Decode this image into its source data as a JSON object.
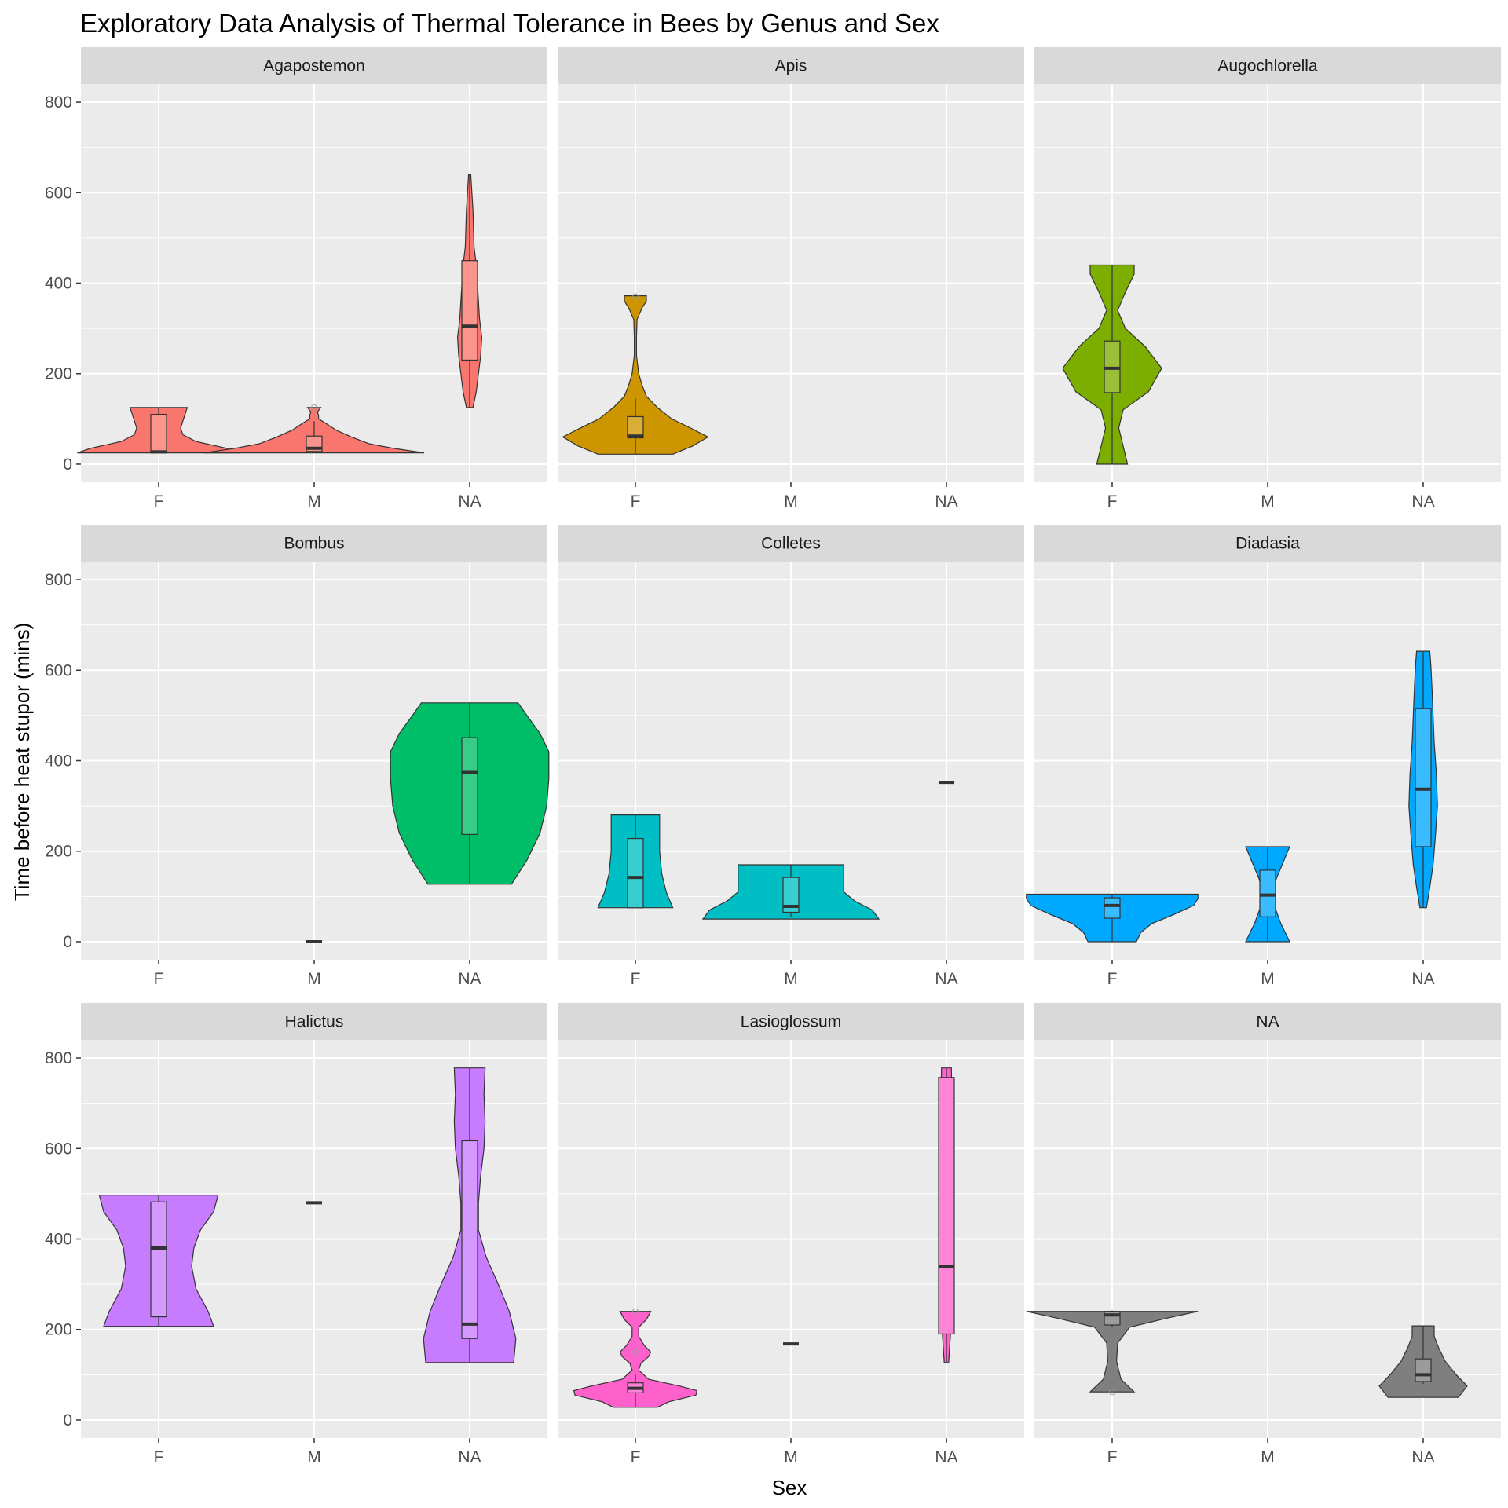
{
  "chart_data": {
    "type": "violin",
    "title": "Exploratory Data Analysis of Thermal Tolerance in Bees by Genus and Sex",
    "xlabel": "Sex",
    "ylabel": "Time before heat stupor (mins)",
    "categories": [
      "F",
      "M",
      "NA"
    ],
    "ylim": [
      -40,
      840
    ],
    "yticks": [
      0,
      200,
      400,
      600,
      800
    ],
    "grid": true,
    "legend": "none",
    "facet_layout": {
      "rows": 3,
      "cols": 3
    },
    "facets": [
      {
        "label": "Agapostemon",
        "color": "#F8766D",
        "groups": [
          {
            "x": "F",
            "box": [
              25,
              25,
              27,
              110,
              125
            ],
            "outliers": [],
            "violin": [
              [
                25,
                0.74
              ],
              [
                35,
                0.62
              ],
              [
                50,
                0.34
              ],
              [
                65,
                0.22
              ],
              [
                80,
                0.2
              ],
              [
                95,
                0.22
              ],
              [
                110,
                0.24
              ],
              [
                125,
                0.26
              ]
            ]
          },
          {
            "x": "M",
            "box": [
              25,
              28,
              35,
              62,
              95
            ],
            "outliers": [
              125
            ],
            "violin": [
              [
                25,
                1.0
              ],
              [
                35,
                0.72
              ],
              [
                45,
                0.5
              ],
              [
                60,
                0.34
              ],
              [
                75,
                0.2
              ],
              [
                88,
                0.12
              ],
              [
                100,
                0.04
              ],
              [
                108,
                0.04
              ],
              [
                115,
                0.03
              ],
              [
                125,
                0.06
              ]
            ]
          },
          {
            "x": "NA",
            "box": [
              125,
              230,
              305,
              450,
              640
            ],
            "outliers": [],
            "violin": [
              [
                125,
                0.03
              ],
              [
                160,
                0.06
              ],
              [
                200,
                0.08
              ],
              [
                240,
                0.1
              ],
              [
                280,
                0.11
              ],
              [
                320,
                0.09
              ],
              [
                360,
                0.08
              ],
              [
                400,
                0.07
              ],
              [
                440,
                0.06
              ],
              [
                480,
                0.04
              ],
              [
                520,
                0.035
              ],
              [
                560,
                0.03
              ],
              [
                600,
                0.02
              ],
              [
                640,
                0.01
              ]
            ]
          }
        ]
      },
      {
        "label": "Apis",
        "color": "#CD9600",
        "groups": [
          {
            "x": "F",
            "box": [
              22,
              58,
              62,
              105,
              145
            ],
            "outliers": [
              370
            ],
            "violin": [
              [
                22,
                0.34
              ],
              [
                40,
                0.52
              ],
              [
                60,
                0.66
              ],
              [
                80,
                0.5
              ],
              [
                100,
                0.33
              ],
              [
                125,
                0.2
              ],
              [
                150,
                0.1
              ],
              [
                175,
                0.06
              ],
              [
                200,
                0.03
              ],
              [
                240,
                0.01
              ],
              [
                280,
                0.01
              ],
              [
                320,
                0.015
              ],
              [
                345,
                0.06
              ],
              [
                360,
                0.1
              ],
              [
                372,
                0.1
              ]
            ]
          }
        ]
      },
      {
        "label": "Augochlorella",
        "color": "#7CAE00",
        "groups": [
          {
            "x": "F",
            "box": [
              0,
              158,
              212,
              272,
              440
            ],
            "outliers": [],
            "violin": [
              [
                0,
                0.14
              ],
              [
                40,
                0.1
              ],
              [
                80,
                0.06
              ],
              [
                120,
                0.1
              ],
              [
                160,
                0.33
              ],
              [
                212,
                0.45
              ],
              [
                260,
                0.3
              ],
              [
                300,
                0.12
              ],
              [
                340,
                0.05
              ],
              [
                380,
                0.12
              ],
              [
                420,
                0.2
              ],
              [
                440,
                0.2
              ]
            ]
          }
        ]
      },
      {
        "label": "Bombus",
        "color": "#00BE67",
        "groups": [
          {
            "x": "M",
            "box": [
              0,
              0,
              0,
              0,
              0
            ],
            "outliers": [],
            "violin": []
          },
          {
            "x": "NA",
            "box": [
              127,
              237,
              374,
              451,
              528
            ],
            "outliers": [],
            "violin": [
              [
                127,
                0.38
              ],
              [
                180,
                0.52
              ],
              [
                240,
                0.64
              ],
              [
                300,
                0.7
              ],
              [
                360,
                0.72
              ],
              [
                420,
                0.72
              ],
              [
                460,
                0.64
              ],
              [
                500,
                0.52
              ],
              [
                528,
                0.44
              ]
            ]
          }
        ]
      },
      {
        "label": "Colletes",
        "color": "#00BFC4",
        "groups": [
          {
            "x": "F",
            "box": [
              75,
              75,
              142,
              228,
              280
            ],
            "outliers": [],
            "violin": [
              [
                75,
                0.34
              ],
              [
                110,
                0.28
              ],
              [
                150,
                0.24
              ],
              [
                200,
                0.22
              ],
              [
                240,
                0.22
              ],
              [
                280,
                0.22
              ]
            ]
          },
          {
            "x": "M",
            "box": [
              55,
              65,
              78,
              142,
              170
            ],
            "outliers": [],
            "violin": [
              [
                50,
                0.8
              ],
              [
                70,
                0.74
              ],
              [
                90,
                0.58
              ],
              [
                110,
                0.48
              ],
              [
                130,
                0.48
              ],
              [
                150,
                0.48
              ],
              [
                170,
                0.48
              ]
            ]
          },
          {
            "x": "NA",
            "box": [
              352,
              352,
              352,
              352,
              352
            ],
            "outliers": [],
            "violin": []
          }
        ]
      },
      {
        "label": "Diadasia",
        "color": "#00A9FF",
        "groups": [
          {
            "x": "F",
            "box": [
              0,
              52,
              80,
              97,
              105
            ],
            "outliers": [],
            "violin": [
              [
                0,
                0.22
              ],
              [
                20,
                0.26
              ],
              [
                40,
                0.36
              ],
              [
                60,
                0.56
              ],
              [
                80,
                0.74
              ],
              [
                95,
                0.78
              ],
              [
                105,
                0.78
              ]
            ]
          },
          {
            "x": "M",
            "box": [
              0,
              55,
              103,
              158,
              210
            ],
            "outliers": [],
            "violin": [
              [
                0,
                0.2
              ],
              [
                40,
                0.12
              ],
              [
                80,
                0.06
              ],
              [
                105,
                0.04
              ],
              [
                140,
                0.08
              ],
              [
                175,
                0.14
              ],
              [
                210,
                0.2
              ]
            ]
          },
          {
            "x": "NA",
            "box": [
              75,
              210,
              337,
              515,
              642
            ],
            "outliers": [],
            "violin": [
              [
                75,
                0.03
              ],
              [
                120,
                0.06
              ],
              [
                170,
                0.09
              ],
              [
                230,
                0.11
              ],
              [
                300,
                0.13
              ],
              [
                370,
                0.12
              ],
              [
                440,
                0.1
              ],
              [
                500,
                0.09
              ],
              [
                560,
                0.08
              ],
              [
                610,
                0.07
              ],
              [
                642,
                0.06
              ]
            ]
          }
        ]
      },
      {
        "label": "Halictus",
        "color": "#C77CFF",
        "groups": [
          {
            "x": "F",
            "box": [
              207,
              228,
              380,
              482,
              497
            ],
            "outliers": [],
            "violin": [
              [
                207,
                0.5
              ],
              [
                240,
                0.45
              ],
              [
                290,
                0.34
              ],
              [
                340,
                0.3
              ],
              [
                380,
                0.32
              ],
              [
                420,
                0.38
              ],
              [
                460,
                0.5
              ],
              [
                497,
                0.54
              ]
            ]
          },
          {
            "x": "M",
            "box": [
              480,
              480,
              480,
              480,
              480
            ],
            "outliers": [],
            "violin": []
          },
          {
            "x": "NA",
            "box": [
              127,
              180,
              212,
              617,
              778
            ],
            "outliers": [],
            "violin": [
              [
                127,
                0.4
              ],
              [
                180,
                0.42
              ],
              [
                240,
                0.36
              ],
              [
                300,
                0.26
              ],
              [
                360,
                0.15
              ],
              [
                420,
                0.08
              ],
              [
                480,
                0.08
              ],
              [
                540,
                0.1
              ],
              [
                600,
                0.13
              ],
              [
                660,
                0.14
              ],
              [
                720,
                0.13
              ],
              [
                778,
                0.14
              ]
            ]
          }
        ]
      },
      {
        "label": "Lasioglossum",
        "color": "#FF61CC",
        "groups": [
          {
            "x": "F",
            "box": [
              28,
              60,
              70,
              82,
              100
            ],
            "outliers": [
              150,
              240
            ],
            "violin": [
              [
                28,
                0.2
              ],
              [
                40,
                0.3
              ],
              [
                55,
                0.55
              ],
              [
                65,
                0.56
              ],
              [
                75,
                0.4
              ],
              [
                90,
                0.12
              ],
              [
                110,
                0.03
              ],
              [
                125,
                0.05
              ],
              [
                140,
                0.12
              ],
              [
                150,
                0.14
              ],
              [
                165,
                0.08
              ],
              [
                185,
                0.03
              ],
              [
                205,
                0.03
              ],
              [
                222,
                0.1
              ],
              [
                240,
                0.14
              ]
            ]
          },
          {
            "x": "M",
            "box": [
              168,
              168,
              168,
              168,
              168
            ],
            "outliers": [],
            "violin": []
          },
          {
            "x": "NA",
            "box": [
              127,
              190,
              340,
              757,
              778
            ],
            "outliers": [],
            "violin": [
              [
                127,
                0.02
              ],
              [
                200,
                0.04
              ],
              [
                300,
                0.05
              ],
              [
                400,
                0.05
              ],
              [
                500,
                0.045
              ],
              [
                600,
                0.045
              ],
              [
                700,
                0.05
              ],
              [
                778,
                0.045
              ]
            ]
          }
        ]
      },
      {
        "label": "NA",
        "color": "#7F7F7F",
        "groups": [
          {
            "x": "F",
            "box": [
              205,
              210,
              232,
              240,
              242
            ],
            "outliers": [
              62
            ],
            "violin": [
              [
                62,
                0.2
              ],
              [
                90,
                0.08
              ],
              [
                130,
                0.04
              ],
              [
                170,
                0.05
              ],
              [
                205,
                0.16
              ],
              [
                225,
                0.5
              ],
              [
                240,
                0.78
              ]
            ]
          },
          {
            "x": "NA",
            "box": [
              80,
              85,
              100,
              135,
              208
            ],
            "outliers": [],
            "violin": [
              [
                50,
                0.32
              ],
              [
                75,
                0.4
              ],
              [
                100,
                0.3
              ],
              [
                130,
                0.2
              ],
              [
                160,
                0.14
              ],
              [
                185,
                0.1
              ],
              [
                208,
                0.1
              ]
            ]
          }
        ]
      }
    ]
  }
}
